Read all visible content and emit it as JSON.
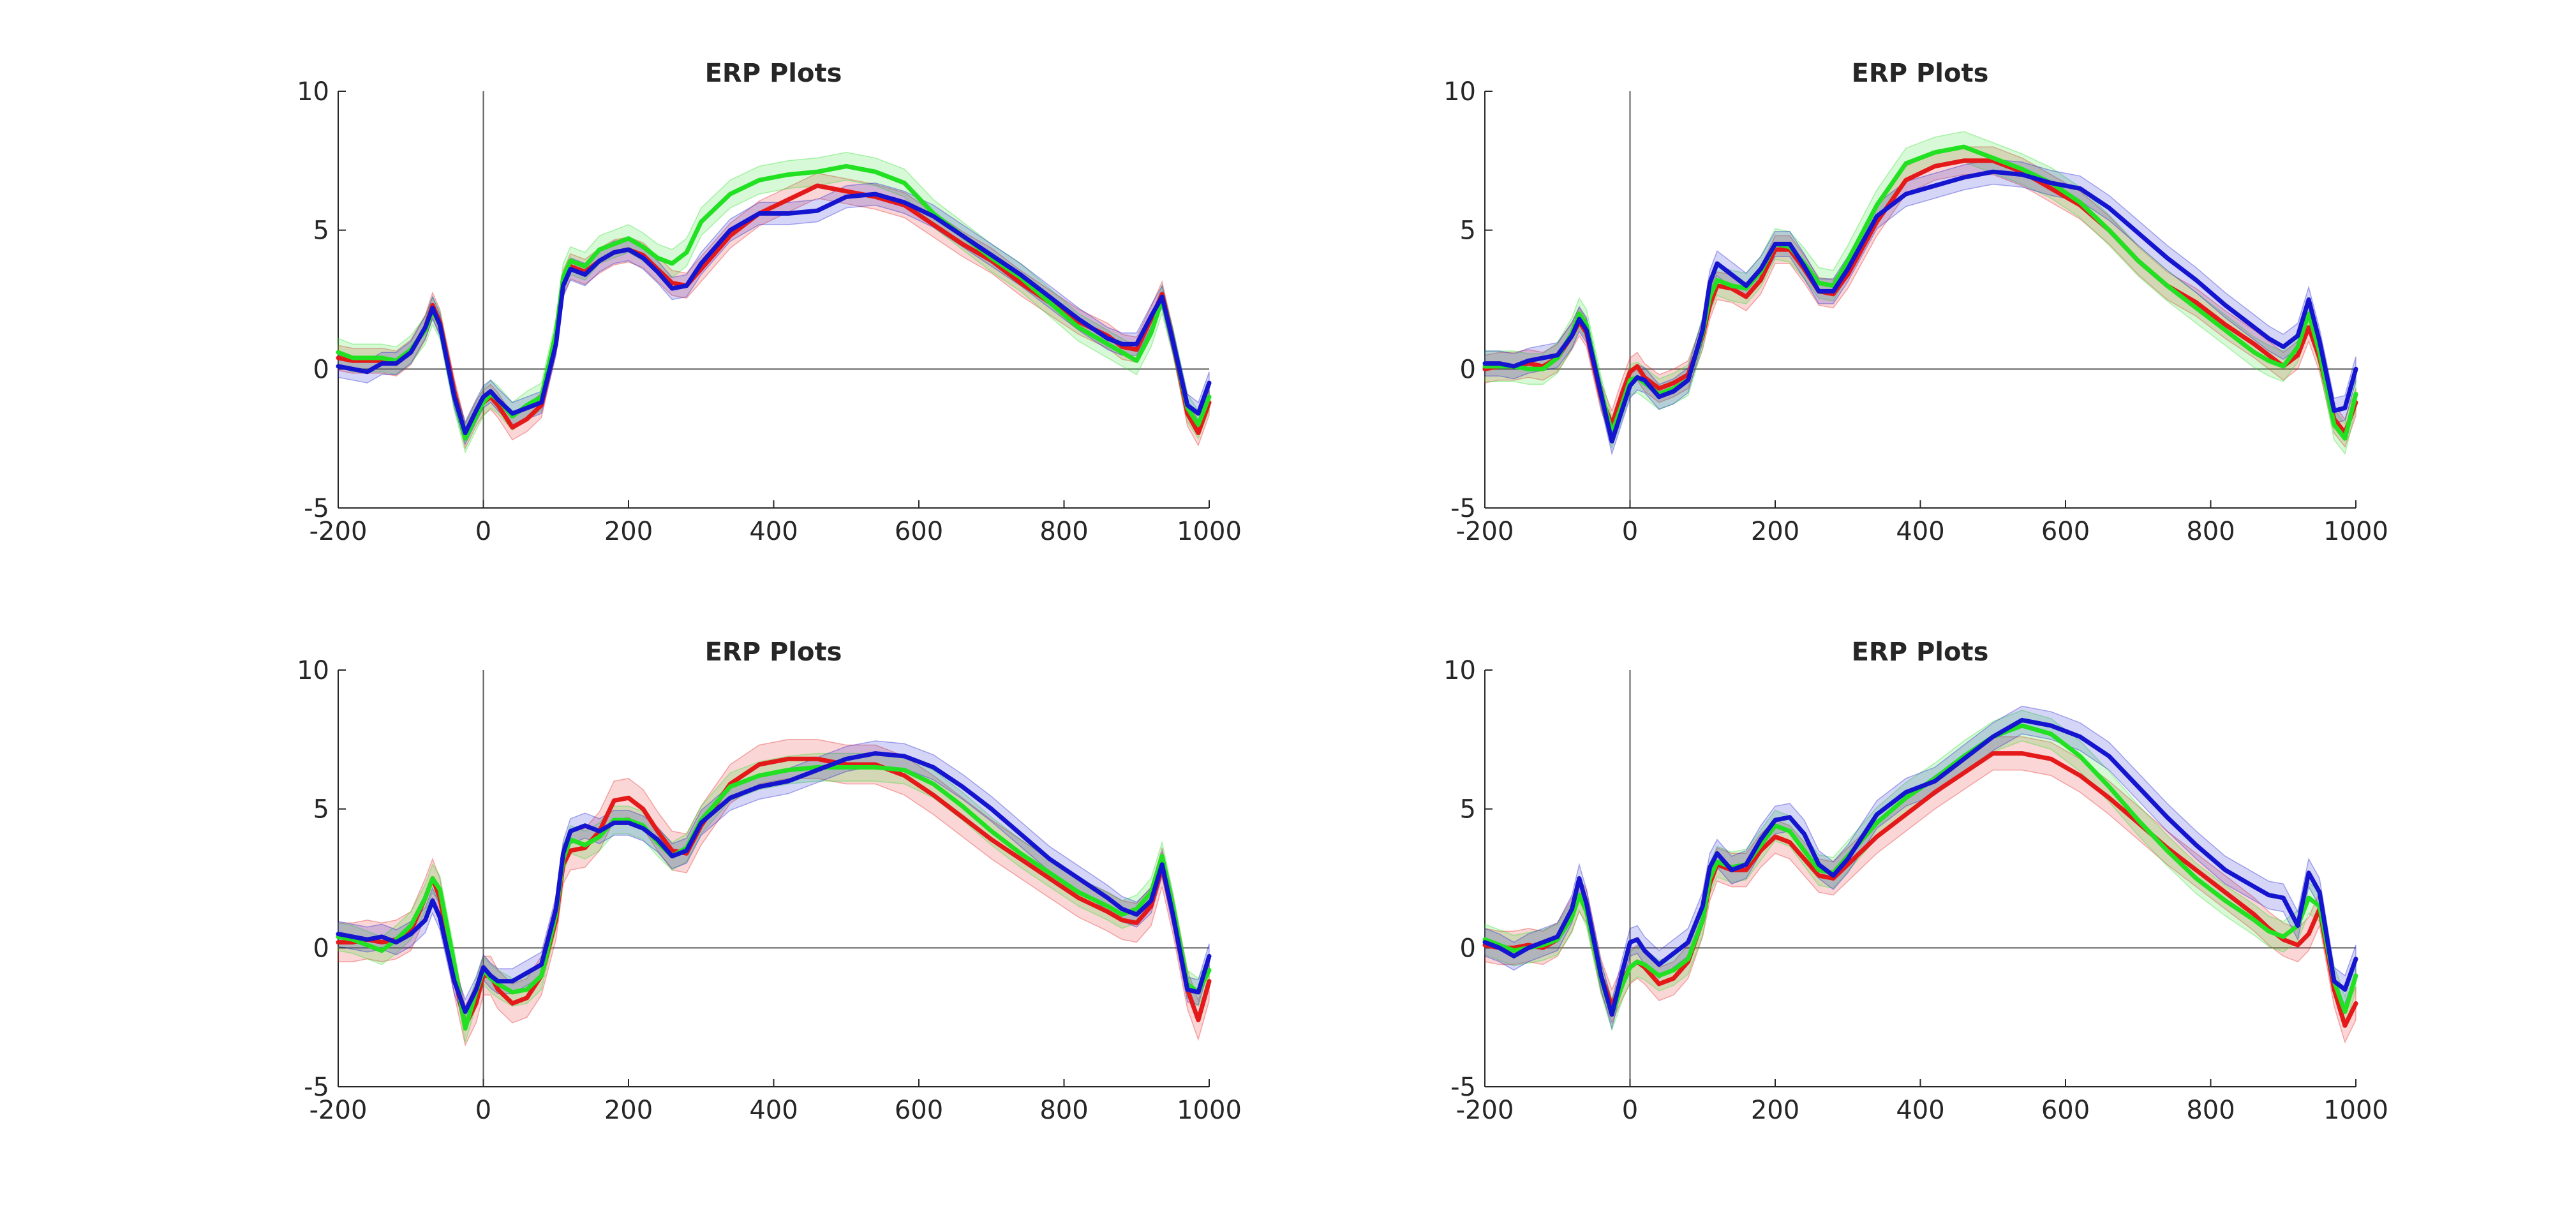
{
  "colors": {
    "red": "#e41a1a",
    "green": "#22e022",
    "blue": "#1515d0",
    "axis": "#262626",
    "zero_line": "#5a5a5a"
  },
  "chart_data": [
    {
      "type": "line",
      "title": "ERP Plots",
      "xlim": [
        -200,
        1000
      ],
      "ylim": [
        -5,
        10
      ],
      "xticks": [
        "-200",
        "0",
        "200",
        "400",
        "600",
        "800",
        "1000"
      ],
      "yticks": [
        "10",
        "5",
        "0",
        "-5"
      ],
      "x": [
        -200,
        -180,
        -160,
        -140,
        -120,
        -100,
        -80,
        -70,
        -60,
        -40,
        -25,
        -10,
        0,
        10,
        20,
        40,
        60,
        80,
        100,
        110,
        120,
        140,
        160,
        180,
        200,
        220,
        240,
        260,
        280,
        300,
        340,
        380,
        420,
        460,
        500,
        540,
        580,
        620,
        660,
        700,
        740,
        780,
        820,
        860,
        880,
        900,
        920,
        935,
        950,
        970,
        985,
        1000
      ],
      "series": [
        {
          "color": "red",
          "band": 0.45,
          "values": [
            0.4,
            0.3,
            0.3,
            0.3,
            0.2,
            0.6,
            1.5,
            2.3,
            1.7,
            -0.8,
            -2.4,
            -1.6,
            -1.2,
            -1.0,
            -1.3,
            -2.1,
            -1.8,
            -1.3,
            1.0,
            3.1,
            3.7,
            3.5,
            3.9,
            4.2,
            4.3,
            4.1,
            3.6,
            3.1,
            3.0,
            3.6,
            4.8,
            5.6,
            6.1,
            6.6,
            6.4,
            6.2,
            5.9,
            5.2,
            4.5,
            3.9,
            3.1,
            2.4,
            1.7,
            1.2,
            0.8,
            0.7,
            1.8,
            2.7,
            1.0,
            -1.6,
            -2.3,
            -1.2
          ]
        },
        {
          "color": "green",
          "band": 0.5,
          "values": [
            0.6,
            0.4,
            0.4,
            0.4,
            0.3,
            0.7,
            1.4,
            2.1,
            1.6,
            -1.0,
            -2.5,
            -1.7,
            -1.2,
            -0.9,
            -1.1,
            -1.7,
            -1.3,
            -1.0,
            1.3,
            3.3,
            3.9,
            3.7,
            4.3,
            4.5,
            4.7,
            4.4,
            4.0,
            3.8,
            4.2,
            5.3,
            6.3,
            6.8,
            7.0,
            7.1,
            7.3,
            7.1,
            6.7,
            5.6,
            4.8,
            4.0,
            3.3,
            2.4,
            1.5,
            0.9,
            0.6,
            0.3,
            1.3,
            2.5,
            1.0,
            -1.4,
            -2.0,
            -1.0
          ]
        },
        {
          "color": "blue",
          "band": 0.4,
          "values": [
            0.1,
            0.0,
            -0.1,
            0.2,
            0.2,
            0.6,
            1.5,
            2.2,
            1.6,
            -1.0,
            -2.3,
            -1.5,
            -1.0,
            -0.8,
            -1.1,
            -1.6,
            -1.4,
            -1.2,
            0.9,
            3.0,
            3.6,
            3.4,
            3.9,
            4.2,
            4.3,
            4.0,
            3.5,
            2.9,
            3.0,
            3.8,
            5.0,
            5.6,
            5.6,
            5.7,
            6.2,
            6.3,
            6.0,
            5.5,
            4.8,
            4.1,
            3.4,
            2.6,
            1.8,
            1.1,
            0.9,
            0.9,
            1.9,
            2.6,
            1.0,
            -1.3,
            -1.6,
            -0.5
          ]
        }
      ]
    },
    {
      "type": "line",
      "title": "ERP Plots",
      "xlim": [
        -200,
        1000
      ],
      "ylim": [
        -5,
        10
      ],
      "xticks": [
        "-200",
        "0",
        "200",
        "400",
        "600",
        "800",
        "1000"
      ],
      "yticks": [
        "10",
        "5",
        "0",
        "-5"
      ],
      "x": [
        -200,
        -180,
        -160,
        -140,
        -120,
        -100,
        -80,
        -70,
        -60,
        -40,
        -25,
        -10,
        0,
        10,
        20,
        40,
        60,
        80,
        100,
        110,
        120,
        140,
        160,
        180,
        200,
        220,
        240,
        260,
        280,
        300,
        340,
        380,
        420,
        460,
        500,
        540,
        580,
        620,
        660,
        700,
        740,
        780,
        820,
        860,
        880,
        900,
        920,
        935,
        950,
        970,
        985,
        1000
      ],
      "series": [
        {
          "color": "red",
          "band": 0.5,
          "values": [
            0.0,
            0.1,
            0.1,
            0.2,
            0.1,
            0.4,
            1.2,
            1.7,
            1.3,
            -1.0,
            -2.0,
            -0.8,
            -0.1,
            0.1,
            -0.3,
            -0.7,
            -0.5,
            -0.2,
            1.2,
            2.3,
            3.0,
            2.9,
            2.6,
            3.2,
            4.3,
            4.3,
            3.6,
            2.8,
            2.7,
            3.4,
            5.3,
            6.8,
            7.3,
            7.5,
            7.5,
            7.1,
            6.5,
            5.9,
            5.0,
            3.9,
            3.0,
            2.4,
            1.6,
            0.9,
            0.5,
            0.1,
            0.5,
            1.5,
            0.4,
            -1.8,
            -2.3,
            -1.2
          ]
        },
        {
          "color": "green",
          "band": 0.55,
          "values": [
            0.1,
            0.1,
            0.1,
            0.0,
            0.0,
            0.4,
            1.3,
            2.0,
            1.6,
            -0.8,
            -2.3,
            -1.2,
            -0.4,
            -0.3,
            -0.5,
            -0.9,
            -0.7,
            -0.4,
            1.3,
            2.6,
            3.2,
            3.0,
            2.9,
            3.5,
            4.5,
            4.4,
            3.8,
            3.1,
            3.0,
            3.9,
            5.9,
            7.4,
            7.8,
            8.0,
            7.6,
            7.2,
            6.7,
            6.0,
            5.0,
            3.9,
            3.0,
            2.2,
            1.4,
            0.6,
            0.3,
            0.1,
            0.8,
            2.0,
            0.6,
            -2.0,
            -2.5,
            -0.9
          ]
        },
        {
          "color": "blue",
          "band": 0.45,
          "values": [
            0.2,
            0.2,
            0.1,
            0.3,
            0.4,
            0.5,
            1.2,
            1.8,
            1.4,
            -0.9,
            -2.6,
            -1.4,
            -0.6,
            -0.3,
            -0.4,
            -1.0,
            -0.8,
            -0.4,
            1.4,
            3.1,
            3.8,
            3.4,
            3.0,
            3.6,
            4.5,
            4.5,
            3.7,
            2.8,
            2.8,
            3.6,
            5.5,
            6.3,
            6.6,
            6.9,
            7.1,
            7.0,
            6.7,
            6.5,
            5.8,
            4.9,
            4.0,
            3.2,
            2.3,
            1.5,
            1.1,
            0.8,
            1.2,
            2.5,
            1.0,
            -1.5,
            -1.4,
            0.0
          ]
        }
      ]
    },
    {
      "type": "line",
      "title": "ERP Plots",
      "xlim": [
        -200,
        1000
      ],
      "ylim": [
        -5,
        10
      ],
      "xticks": [
        "-200",
        "0",
        "200",
        "400",
        "600",
        "800",
        "1000"
      ],
      "yticks": [
        "10",
        "5",
        "0",
        "-5"
      ],
      "x": [
        -200,
        -180,
        -160,
        -140,
        -120,
        -100,
        -80,
        -70,
        -60,
        -40,
        -25,
        -10,
        0,
        10,
        20,
        40,
        60,
        80,
        100,
        110,
        120,
        140,
        160,
        180,
        200,
        220,
        240,
        260,
        280,
        300,
        340,
        380,
        420,
        460,
        500,
        540,
        580,
        620,
        660,
        700,
        740,
        780,
        820,
        860,
        880,
        900,
        920,
        935,
        950,
        970,
        985,
        1000
      ],
      "series": [
        {
          "color": "red",
          "band": 0.7,
          "values": [
            0.2,
            0.2,
            0.3,
            0.2,
            0.3,
            0.6,
            1.8,
            2.5,
            1.8,
            -1.0,
            -2.8,
            -2.0,
            -1.0,
            -1.0,
            -1.5,
            -2.0,
            -1.8,
            -1.0,
            1.0,
            3.0,
            3.5,
            3.6,
            4.2,
            5.3,
            5.4,
            5.0,
            4.2,
            3.5,
            3.4,
            4.4,
            5.9,
            6.6,
            6.8,
            6.8,
            6.6,
            6.6,
            6.2,
            5.5,
            4.7,
            3.9,
            3.2,
            2.5,
            1.8,
            1.3,
            1.0,
            0.9,
            1.5,
            2.9,
            1.2,
            -1.5,
            -2.6,
            -1.2
          ]
        },
        {
          "color": "green",
          "band": 0.5,
          "values": [
            0.4,
            0.3,
            0.1,
            -0.1,
            0.3,
            0.8,
            1.8,
            2.5,
            2.1,
            -0.6,
            -2.9,
            -1.6,
            -0.8,
            -1.1,
            -1.3,
            -1.6,
            -1.5,
            -1.0,
            1.2,
            3.2,
            3.9,
            3.7,
            4.0,
            4.6,
            4.6,
            4.4,
            3.8,
            3.3,
            3.6,
            4.6,
            5.8,
            6.2,
            6.4,
            6.5,
            6.5,
            6.5,
            6.4,
            5.9,
            5.1,
            4.2,
            3.4,
            2.7,
            2.0,
            1.5,
            1.2,
            1.4,
            2.0,
            3.3,
            1.5,
            -1.3,
            -1.6,
            -0.8
          ]
        },
        {
          "color": "blue",
          "band": 0.45,
          "values": [
            0.5,
            0.4,
            0.3,
            0.4,
            0.2,
            0.5,
            1.0,
            1.7,
            1.1,
            -1.2,
            -2.3,
            -1.5,
            -0.7,
            -1.0,
            -1.2,
            -1.2,
            -0.9,
            -0.6,
            1.4,
            3.4,
            4.2,
            4.4,
            4.2,
            4.5,
            4.5,
            4.3,
            3.9,
            3.3,
            3.5,
            4.5,
            5.4,
            5.8,
            6.0,
            6.4,
            6.8,
            7.0,
            6.9,
            6.5,
            5.8,
            5.0,
            4.1,
            3.2,
            2.5,
            1.8,
            1.4,
            1.2,
            1.7,
            3.0,
            1.2,
            -1.5,
            -1.6,
            -0.3
          ]
        }
      ]
    },
    {
      "type": "line",
      "title": "ERP Plots",
      "xlim": [
        -200,
        1000
      ],
      "ylim": [
        -5,
        10
      ],
      "xticks": [
        "-200",
        "0",
        "200",
        "400",
        "600",
        "800",
        "1000"
      ],
      "yticks": [
        "10",
        "5",
        "0",
        "-5"
      ],
      "x": [
        -200,
        -180,
        -160,
        -140,
        -120,
        -100,
        -80,
        -70,
        -60,
        -40,
        -25,
        -10,
        0,
        10,
        20,
        40,
        60,
        80,
        100,
        110,
        120,
        140,
        160,
        180,
        200,
        220,
        240,
        260,
        280,
        300,
        340,
        380,
        420,
        460,
        500,
        540,
        580,
        620,
        660,
        700,
        740,
        780,
        820,
        860,
        880,
        900,
        920,
        935,
        950,
        970,
        985,
        1000
      ],
      "series": [
        {
          "color": "red",
          "band": 0.6,
          "values": [
            0.1,
            0.0,
            0.0,
            0.1,
            0.0,
            0.3,
            1.2,
            1.9,
            1.5,
            -1.0,
            -2.1,
            -1.2,
            -0.7,
            -0.5,
            -0.7,
            -1.3,
            -1.1,
            -0.5,
            1.0,
            2.3,
            3.0,
            2.8,
            2.8,
            3.5,
            4.0,
            3.8,
            3.2,
            2.6,
            2.5,
            3.0,
            4.0,
            4.8,
            5.6,
            6.3,
            7.0,
            7.0,
            6.8,
            6.2,
            5.4,
            4.5,
            3.6,
            2.8,
            2.0,
            1.2,
            0.7,
            0.3,
            0.1,
            0.5,
            1.4,
            -1.5,
            -2.8,
            -2.0
          ]
        },
        {
          "color": "green",
          "band": 0.55,
          "values": [
            0.3,
            0.1,
            -0.1,
            0.0,
            0.1,
            0.3,
            1.1,
            1.9,
            1.3,
            -1.1,
            -2.4,
            -1.3,
            -0.7,
            -0.5,
            -0.6,
            -1.0,
            -0.8,
            -0.4,
            1.0,
            2.5,
            3.1,
            2.9,
            3.0,
            3.7,
            4.4,
            4.2,
            3.5,
            2.8,
            2.7,
            3.3,
            4.5,
            5.4,
            6.1,
            6.9,
            7.6,
            8.0,
            7.7,
            6.9,
            5.8,
            4.6,
            3.5,
            2.5,
            1.7,
            1.0,
            0.6,
            0.4,
            0.8,
            1.8,
            1.5,
            -1.2,
            -2.3,
            -1.0
          ]
        },
        {
          "color": "blue",
          "band": 0.5,
          "values": [
            0.2,
            0.0,
            -0.3,
            0.0,
            0.2,
            0.4,
            1.4,
            2.5,
            1.6,
            -1.0,
            -2.4,
            -0.8,
            0.2,
            0.3,
            -0.1,
            -0.6,
            -0.2,
            0.2,
            1.5,
            2.9,
            3.4,
            2.8,
            3.0,
            3.9,
            4.6,
            4.7,
            4.1,
            3.0,
            2.6,
            3.2,
            4.8,
            5.6,
            6.0,
            6.8,
            7.6,
            8.2,
            8.0,
            7.6,
            6.9,
            5.8,
            4.7,
            3.7,
            2.8,
            2.2,
            1.9,
            1.8,
            0.8,
            2.7,
            2.0,
            -1.2,
            -1.5,
            -0.4
          ]
        }
      ]
    }
  ]
}
